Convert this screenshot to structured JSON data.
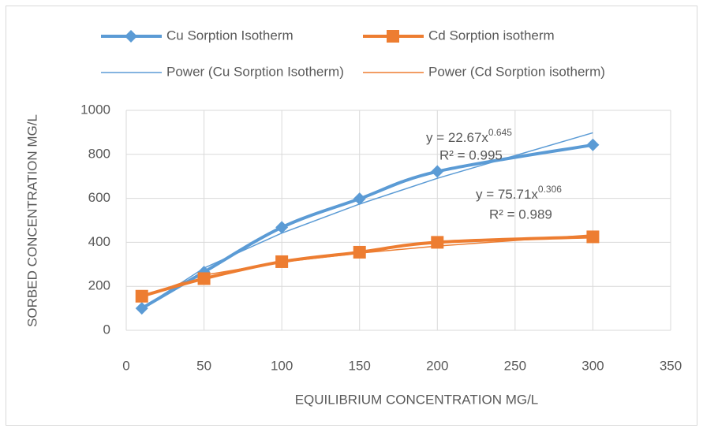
{
  "chart_data": {
    "type": "line",
    "x_label": "EQUILIBRIUM CONCENTRATION MG/L",
    "y_label": "SORBED CONCENTRATION MG/L",
    "x": [
      10,
      50,
      100,
      150,
      200,
      300
    ],
    "series": [
      {
        "name": "Cu Sorption Isotherm",
        "color": "#5b9bd5",
        "marker": "diamond",
        "values": [
          100,
          265,
          468,
          598,
          722,
          843
        ]
      },
      {
        "name": "Cd Sorption isotherm",
        "color": "#ed7d31",
        "marker": "square",
        "values": [
          155,
          235,
          312,
          355,
          400,
          425
        ]
      },
      {
        "name": "Power (Cu Sorption Isotherm)",
        "color": "#5b9bd5",
        "trendline": true,
        "values": [
          100,
          283,
          442,
          574,
          691,
          898
        ]
      },
      {
        "name": "Power (Cd Sorption isotherm)",
        "color": "#ed7d31",
        "trendline": true,
        "values": [
          153,
          251,
          310,
          351,
          383,
          434
        ]
      }
    ],
    "annotations": [
      {
        "text": "y = 22.67x",
        "superscript": "0.645",
        "r2": "R² = 0.995"
      },
      {
        "text": "y = 75.71x",
        "superscript": "0.306",
        "r2": "R² = 0.989"
      }
    ],
    "xlim": [
      0,
      350
    ],
    "xticks": [
      0,
      50,
      100,
      150,
      200,
      250,
      300,
      350
    ],
    "ylim": [
      0,
      1000
    ],
    "yticks": [
      0,
      200,
      400,
      600,
      800,
      1000
    ],
    "grid": true,
    "legend": "top"
  }
}
